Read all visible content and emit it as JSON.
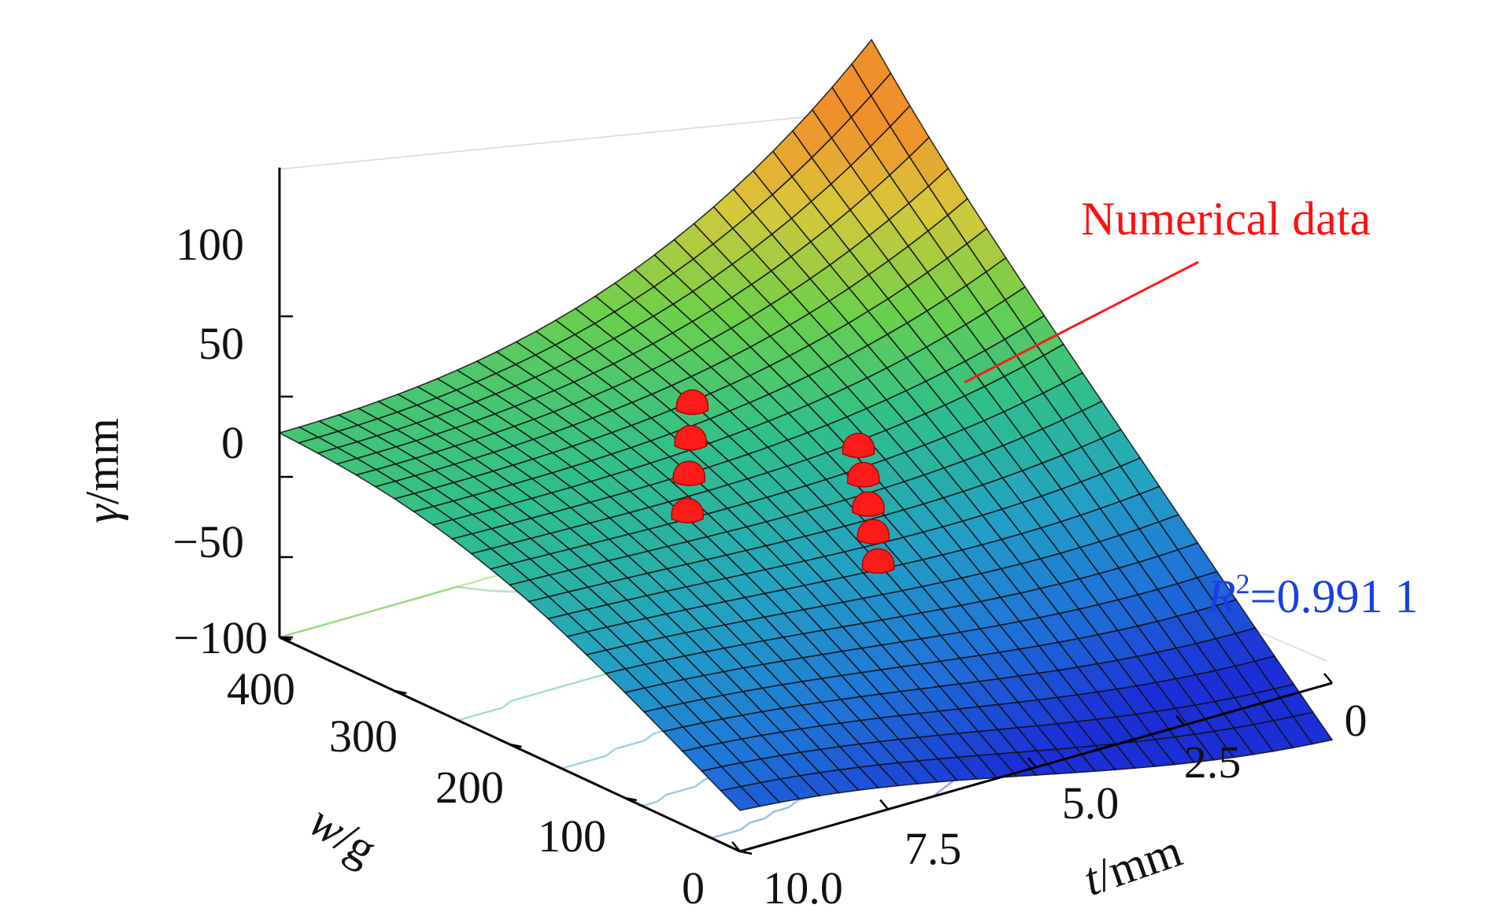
{
  "chart_data": {
    "type": "surface3d",
    "zlabel_symbol": "γ",
    "zlabel_unit": "/mm",
    "xlabel_symbol": "w",
    "xlabel_unit": "/g",
    "ylabel_symbol": "t",
    "ylabel_unit": "/mm",
    "z_ticks": [
      "100",
      "50",
      "0",
      "−50",
      "−100"
    ],
    "z_tick_values": [
      100,
      50,
      0,
      -50,
      -100
    ],
    "w_ticks": [
      "400",
      "300",
      "200",
      "100",
      "0"
    ],
    "w_tick_values": [
      400,
      300,
      200,
      100,
      0
    ],
    "t_ticks": [
      "0",
      "2.5",
      "5.0",
      "7.5",
      "10.0"
    ],
    "t_tick_values": [
      0,
      2.5,
      5.0,
      7.5,
      10.0
    ],
    "zlim": [
      -100,
      130
    ],
    "wlim": [
      0,
      400
    ],
    "tlim": [
      0,
      10
    ],
    "annotation": "Numerical data",
    "r2_symbol": "R",
    "r2_exp": "2",
    "r2_value": "=0.991 1",
    "surface_colormap": [
      "#1a2fd6",
      "#1f74d9",
      "#23a3c2",
      "#2fc08a",
      "#6fd04a",
      "#d9c83a",
      "#f0902a"
    ],
    "point_color": "#ff1a1a",
    "points": [
      {
        "w": 60,
        "t": 6.5,
        "gamma": 22
      },
      {
        "w": 90,
        "t": 6.0,
        "gamma": 25
      },
      {
        "w": 120,
        "t": 5.5,
        "gamma": 27
      },
      {
        "w": 150,
        "t": 5.0,
        "gamma": 30
      },
      {
        "w": 180,
        "t": 4.5,
        "gamma": 33
      },
      {
        "w": 200,
        "t": 7.0,
        "gamma": 12
      },
      {
        "w": 250,
        "t": 6.0,
        "gamma": 8
      },
      {
        "w": 300,
        "t": 5.0,
        "gamma": 3
      },
      {
        "w": 350,
        "t": 4.0,
        "gamma": -2
      }
    ]
  }
}
